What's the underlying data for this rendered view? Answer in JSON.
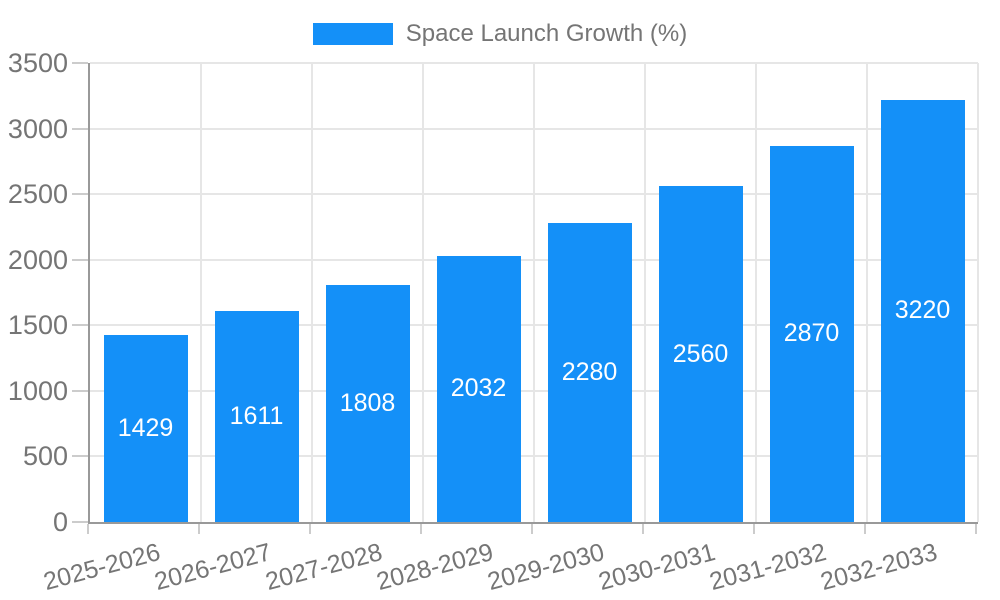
{
  "chart_data": {
    "type": "bar",
    "title": "Space Launch Growth (%)",
    "legend": [
      "Space Launch Growth (%)"
    ],
    "legend_position": "top-center",
    "categories": [
      "2025-2026",
      "2026-2027",
      "2027-2028",
      "2028-2029",
      "2029-2030",
      "2030-2031",
      "2031-2032",
      "2032-2033"
    ],
    "values": [
      1429,
      1611,
      1808,
      2032,
      2280,
      2560,
      2870,
      3220
    ],
    "bar_value_labels": [
      "1429",
      "1611",
      "1808",
      "2032",
      "2280",
      "2560",
      "2870",
      "3220"
    ],
    "xlabel": "",
    "ylabel": "",
    "ylim": [
      0,
      3500
    ],
    "ytick_step": 500,
    "ytick_labels": [
      "0",
      "500",
      "1000",
      "1500",
      "2000",
      "2500",
      "3000",
      "3500"
    ],
    "grid": true,
    "x_tick_rotation_deg": -15,
    "colors": {
      "bar": "#1490f8",
      "bar_value_text": "#ffffff",
      "axis_text": "#757575",
      "grid_line": "#e6e6e6",
      "axis_line": "#999999",
      "tick_mark": "#cccccc",
      "background": "#ffffff"
    }
  }
}
